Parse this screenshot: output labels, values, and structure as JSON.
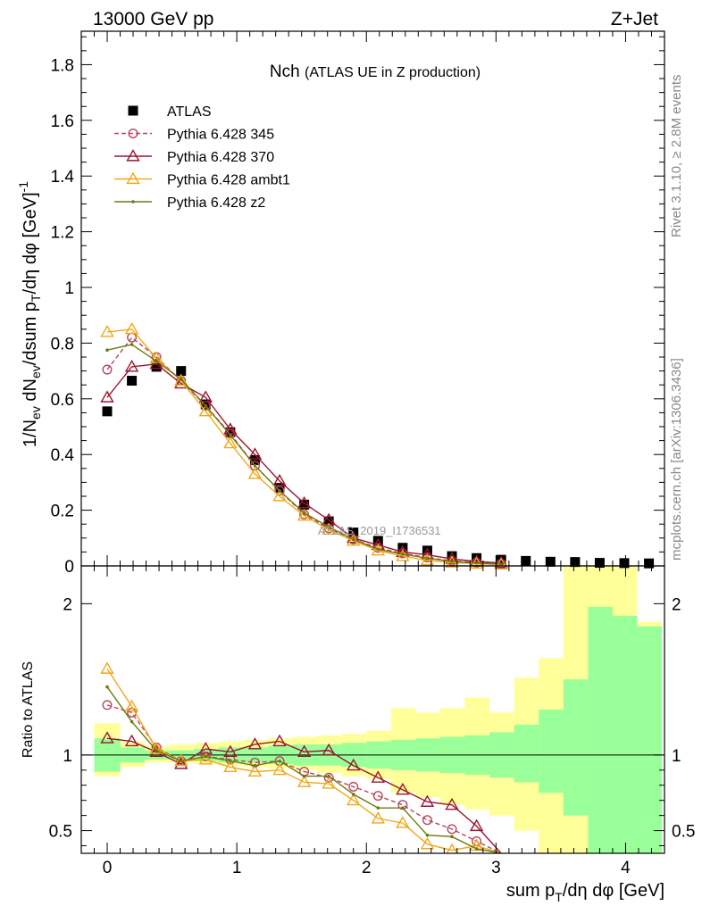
{
  "header": {
    "left": "13000 GeV pp",
    "right": "Z+Jet"
  },
  "side_labels": {
    "rivet": "Rivet 3.1.10, ≥ 2.8M events",
    "mcplots": "mcplots.cern.ch [arXiv:1306.3436]"
  },
  "chart_data": [
    {
      "type": "scatter",
      "panel": "main",
      "title": "Nch (ATLAS UE in Z production)",
      "ylabel": "1/N_ev dN_ev/dsum p_T/dη dφ [GeV]^-1",
      "xlim": [
        -0.2,
        4.3
      ],
      "ylim": [
        0,
        1.92
      ],
      "yticks": [
        0.2,
        0.4,
        0.6,
        0.8,
        1,
        1.2,
        1.4,
        1.6,
        1.8
      ],
      "ytick_labels": [
        "0.2",
        "0.4",
        "0.6",
        "0.8",
        "1",
        "1.2",
        "1.4",
        "1.6",
        "1.8"
      ],
      "watermark": "ATLAS_2019_I1736531",
      "legend_position": "top-left",
      "x": [
        0,
        0.19,
        0.38,
        0.57,
        0.76,
        0.95,
        1.14,
        1.33,
        1.52,
        1.71,
        1.9,
        2.09,
        2.28,
        2.47,
        2.66,
        2.85,
        3.04,
        3.23,
        3.42,
        3.61,
        3.8,
        3.99,
        4.18
      ],
      "series": [
        {
          "name": "ATLAS",
          "color": "#000000",
          "marker": "square",
          "style": "none",
          "values": [
            0.555,
            0.665,
            0.715,
            0.7,
            0.58,
            0.48,
            0.38,
            0.28,
            0.22,
            0.16,
            0.12,
            0.09,
            0.065,
            0.055,
            0.035,
            0.028,
            0.022,
            0.018,
            0.015,
            0.014,
            0.011,
            0.01,
            0.009
          ]
        },
        {
          "name": "Pythia 6.428 345",
          "color": "#b5485e",
          "marker": "open-circle",
          "style": "dashed",
          "values": [
            0.705,
            0.82,
            0.75,
            0.665,
            0.575,
            0.475,
            0.36,
            0.27,
            0.185,
            0.135,
            0.095,
            0.065,
            0.045,
            0.03,
            0.018,
            0.012,
            0.008
          ]
        },
        {
          "name": "Pythia 6.428 370",
          "color": "#9b1530",
          "marker": "open-triangle",
          "style": "solid",
          "values": [
            0.605,
            0.715,
            0.725,
            0.655,
            0.605,
            0.49,
            0.4,
            0.305,
            0.225,
            0.165,
            0.1,
            0.075,
            0.05,
            0.04,
            0.025,
            0.016,
            0.01
          ]
        },
        {
          "name": "Pythia 6.428 ambt1",
          "color": "#f0a818",
          "marker": "open-triangle",
          "style": "solid",
          "values": [
            0.84,
            0.85,
            0.745,
            0.665,
            0.555,
            0.44,
            0.33,
            0.25,
            0.18,
            0.13,
            0.09,
            0.055,
            0.035,
            0.02,
            0.012,
            0.008,
            0.005
          ]
        },
        {
          "name": "Pythia 6.428 z2",
          "color": "#6e7a10",
          "marker": "dot",
          "style": "solid",
          "values": [
            0.775,
            0.795,
            0.735,
            0.67,
            0.575,
            0.47,
            0.36,
            0.27,
            0.19,
            0.14,
            0.095,
            0.06,
            0.042,
            0.028,
            0.016,
            0.01,
            0.006
          ]
        }
      ]
    },
    {
      "type": "line",
      "panel": "ratio",
      "ylabel": "Ratio to ATLAS",
      "xlabel": "sum p_T/dη dφ [GeV]",
      "xlim": [
        -0.2,
        4.3
      ],
      "ylim": [
        0.35,
        2.25
      ],
      "yticks": [
        0.5,
        1,
        2
      ],
      "ytick_labels": [
        "0.5",
        "1",
        "2"
      ],
      "xticks": [
        0,
        1,
        2,
        3,
        4
      ],
      "xtick_labels": [
        "0",
        "1",
        "2",
        "3",
        "4"
      ],
      "bin_edges": [
        -0.1,
        0.1,
        0.29,
        0.48,
        0.67,
        0.86,
        1.05,
        1.24,
        1.43,
        1.62,
        1.81,
        2.0,
        2.19,
        2.38,
        2.57,
        2.76,
        2.95,
        3.14,
        3.33,
        3.52,
        3.71,
        3.9,
        4.09,
        4.28
      ],
      "band_stat_lo": [
        0.89,
        0.95,
        0.97,
        0.97,
        0.96,
        0.95,
        0.95,
        0.94,
        0.93,
        0.93,
        0.92,
        0.91,
        0.9,
        0.89,
        0.88,
        0.87,
        0.85,
        0.82,
        0.75,
        0.6,
        0.35,
        0.35,
        0.35
      ],
      "band_stat_hi": [
        1.11,
        1.05,
        1.03,
        1.03,
        1.04,
        1.05,
        1.05,
        1.06,
        1.07,
        1.07,
        1.08,
        1.09,
        1.1,
        1.11,
        1.12,
        1.13,
        1.15,
        1.2,
        1.3,
        1.5,
        1.98,
        1.92,
        1.85
      ],
      "band_tot_lo": [
        0.86,
        0.92,
        0.95,
        0.95,
        0.94,
        0.93,
        0.92,
        0.91,
        0.9,
        0.88,
        0.86,
        0.84,
        0.75,
        0.72,
        0.67,
        0.64,
        0.6,
        0.5,
        0.35,
        0.35,
        0.35,
        0.35,
        0.6
      ],
      "band_tot_hi": [
        1.21,
        1.09,
        1.06,
        1.07,
        1.08,
        1.09,
        1.1,
        1.11,
        1.12,
        1.13,
        1.14,
        1.16,
        1.31,
        1.28,
        1.31,
        1.38,
        1.28,
        1.51,
        1.64,
        2.25,
        2.25,
        2.25,
        1.88
      ],
      "series": [
        {
          "name": "Pythia 6.428 345",
          "color": "#b5485e",
          "style": "dashed",
          "values": [
            1.33,
            1.28,
            1.05,
            0.96,
            0.99,
            0.97,
            0.95,
            0.96,
            0.89,
            0.85,
            0.79,
            0.73,
            0.67,
            0.57,
            0.51,
            0.43,
            0.35
          ]
        },
        {
          "name": "Pythia 6.428 370",
          "color": "#9b1530",
          "style": "solid",
          "values": [
            1.11,
            1.09,
            1.02,
            0.94,
            1.04,
            1.02,
            1.07,
            1.09,
            1.02,
            1.03,
            0.93,
            0.85,
            0.77,
            0.69,
            0.67,
            0.53,
            0.35
          ]
        },
        {
          "name": "Pythia 6.428 ambt1",
          "color": "#f0a818",
          "style": "solid",
          "values": [
            1.57,
            1.32,
            1.04,
            0.96,
            0.97,
            0.92,
            0.89,
            0.9,
            0.82,
            0.81,
            0.7,
            0.58,
            0.55,
            0.41,
            0.37,
            0.4,
            0.35
          ]
        },
        {
          "name": "Pythia 6.428 z2",
          "color": "#6e7a10",
          "style": "solid",
          "values": [
            1.45,
            1.22,
            1.03,
            0.96,
            0.99,
            0.96,
            0.93,
            0.96,
            0.86,
            0.86,
            0.74,
            0.65,
            0.65,
            0.47,
            0.46,
            0.38,
            0.35
          ]
        }
      ]
    }
  ]
}
